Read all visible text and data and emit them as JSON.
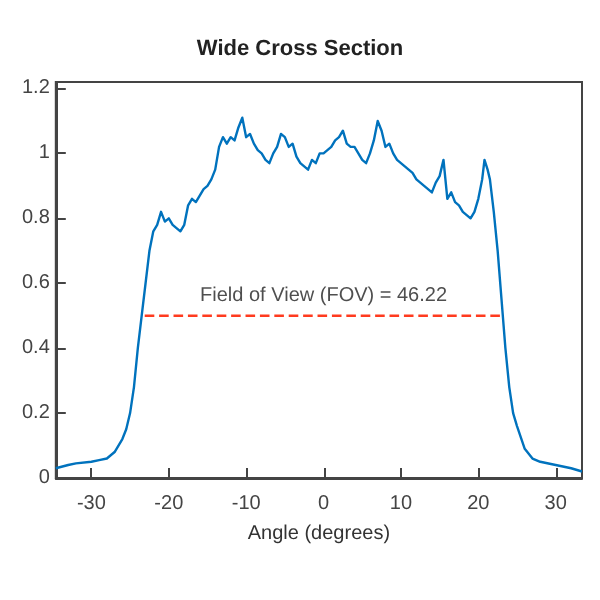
{
  "chart_data": {
    "type": "line",
    "title": "Wide Cross Section",
    "xlabel": "Angle (degrees)",
    "xlim": [
      -34.6,
      33.4
    ],
    "ylim": [
      0,
      1.22
    ],
    "xticks": [
      -30,
      -20,
      -10,
      0,
      10,
      20,
      30
    ],
    "yticks": [
      0,
      0.2,
      0.4,
      0.6,
      0.8,
      1,
      1.2
    ],
    "grid": false,
    "marker": "none",
    "annotations": [
      {
        "text": "Field of View (FOV) = 46.22",
        "x": 0,
        "y": 0.5
      }
    ],
    "series": [
      {
        "color": "#0072bd",
        "line_style": "solid",
        "x": [
          -34.6,
          -33,
          -32,
          -30,
          -29,
          -28,
          -27,
          -26,
          -25.5,
          -25,
          -24.5,
          -24,
          -23.5,
          -23,
          -22.5,
          -22,
          -21.5,
          -21,
          -20.5,
          -20,
          -19.5,
          -19,
          -18.5,
          -18,
          -17.5,
          -17,
          -16.5,
          -16,
          -15.5,
          -15,
          -14.5,
          -14,
          -13.5,
          -13,
          -12.5,
          -12,
          -11.5,
          -11,
          -10.5,
          -10,
          -9.5,
          -9,
          -8.5,
          -8,
          -7.5,
          -7,
          -6.5,
          -6,
          -5.5,
          -5,
          -4.5,
          -4,
          -3.5,
          -3,
          -2.5,
          -2,
          -1.5,
          -1,
          -0.5,
          0,
          0.5,
          1,
          1.5,
          2,
          2.5,
          3,
          3.5,
          4,
          4.5,
          5,
          5.5,
          6,
          6.5,
          7,
          7.5,
          8,
          8.5,
          9,
          9.5,
          10,
          10.5,
          11,
          11.5,
          12,
          12.5,
          13,
          13.5,
          14,
          14.5,
          15,
          15.5,
          16,
          16.5,
          17,
          17.5,
          18,
          18.5,
          19,
          19.5,
          20,
          20.5,
          20.8,
          21.2,
          21.5,
          22,
          22.5,
          23,
          23.5,
          24,
          24.5,
          25,
          26,
          27,
          28,
          30,
          32,
          33.4
        ],
        "values": [
          0.03,
          0.04,
          0.045,
          0.05,
          0.055,
          0.06,
          0.08,
          0.12,
          0.15,
          0.2,
          0.28,
          0.4,
          0.5,
          0.6,
          0.7,
          0.76,
          0.78,
          0.82,
          0.79,
          0.8,
          0.78,
          0.77,
          0.76,
          0.78,
          0.84,
          0.86,
          0.85,
          0.87,
          0.89,
          0.9,
          0.92,
          0.95,
          1.02,
          1.05,
          1.03,
          1.05,
          1.04,
          1.08,
          1.11,
          1.05,
          1.06,
          1.03,
          1.01,
          1.0,
          0.98,
          0.97,
          1.0,
          1.02,
          1.06,
          1.05,
          1.02,
          1.03,
          0.99,
          0.97,
          0.96,
          0.95,
          0.98,
          0.97,
          1.0,
          1.0,
          1.01,
          1.02,
          1.04,
          1.05,
          1.07,
          1.03,
          1.02,
          1.02,
          1.0,
          0.98,
          0.97,
          1.0,
          1.04,
          1.1,
          1.07,
          1.02,
          1.03,
          1.0,
          0.98,
          0.97,
          0.96,
          0.95,
          0.94,
          0.92,
          0.91,
          0.9,
          0.89,
          0.88,
          0.91,
          0.93,
          0.98,
          0.86,
          0.88,
          0.85,
          0.84,
          0.82,
          0.81,
          0.8,
          0.82,
          0.86,
          0.92,
          0.98,
          0.95,
          0.92,
          0.82,
          0.7,
          0.55,
          0.4,
          0.28,
          0.2,
          0.16,
          0.09,
          0.06,
          0.05,
          0.04,
          0.03,
          0.02
        ]
      },
      {
        "color": "#ff3b1f",
        "line_style": "dashed",
        "x": [
          -23.11,
          23.11
        ],
        "values": [
          0.5,
          0.5
        ]
      }
    ]
  }
}
